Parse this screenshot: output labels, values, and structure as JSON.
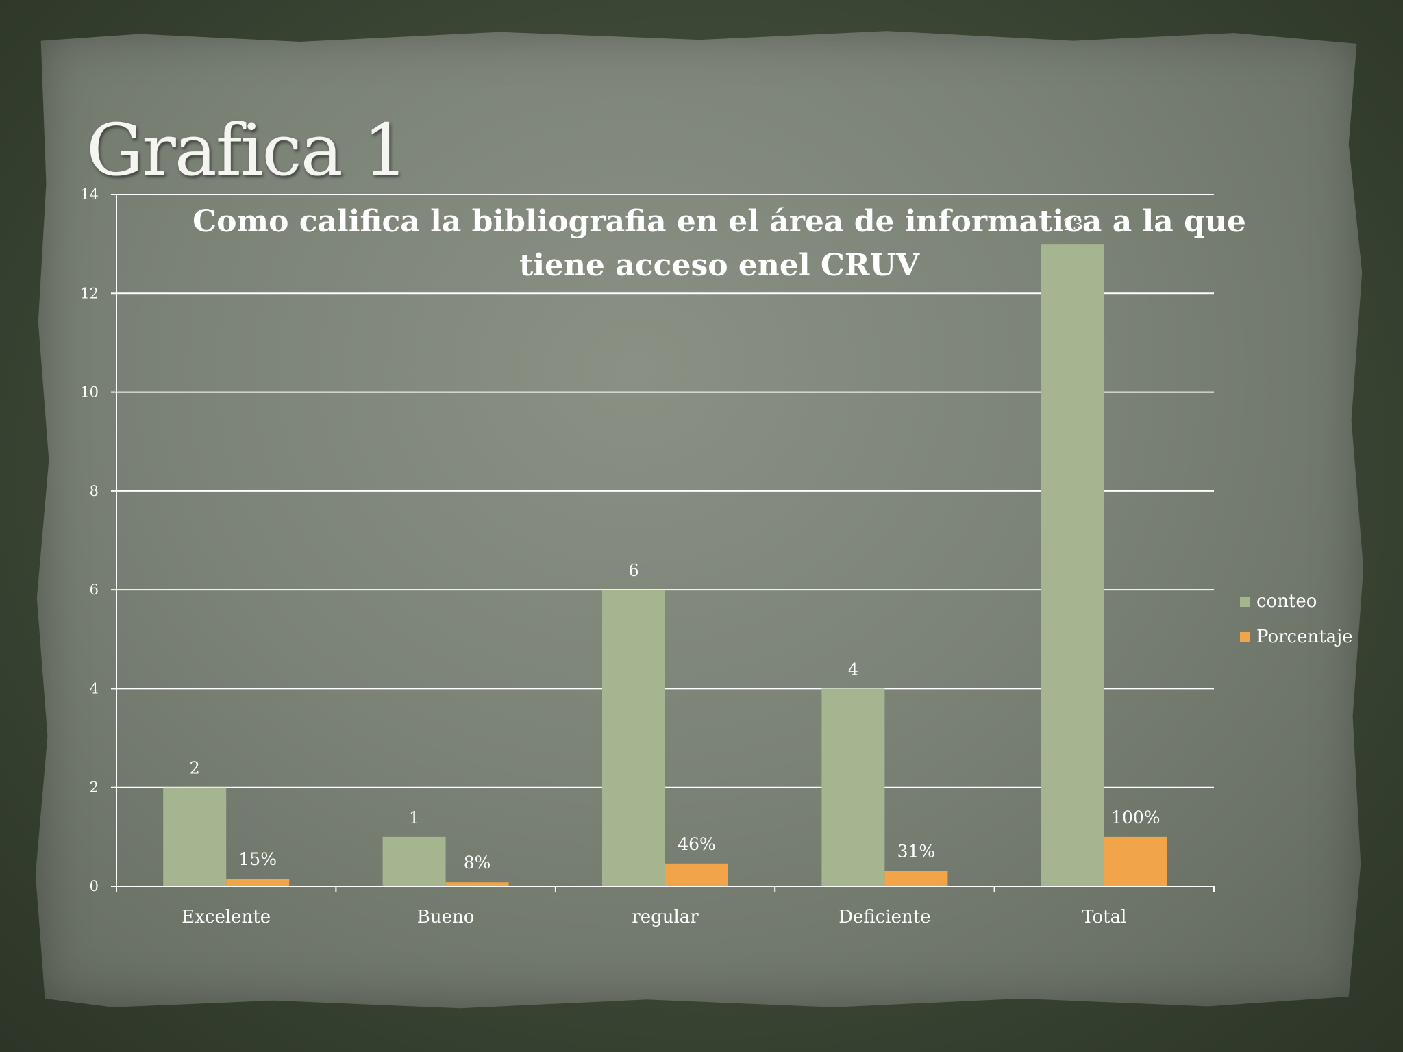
{
  "slide": {
    "title": "Grafica 1"
  },
  "colors": {
    "conteo": "#a4b590",
    "porcentaje": "#f2a448",
    "axis": "#ffffff",
    "text": "#ffffff"
  },
  "chart_data": {
    "type": "bar",
    "title": "Como califica la bibliografia en el área de informatica a la que tiene acceso enel CRUV",
    "categories": [
      "Excelente",
      "Bueno",
      "regular",
      "Deficiente",
      "Total"
    ],
    "series": [
      {
        "name": "conteo",
        "values": [
          2,
          1,
          6,
          4,
          13
        ],
        "labels": [
          "2",
          "1",
          "6",
          "4",
          "13"
        ]
      },
      {
        "name": "Porcentaje",
        "values": [
          0.15,
          0.08,
          0.46,
          0.31,
          1.0
        ],
        "labels": [
          "15%",
          "8%",
          "46%",
          "31%",
          "100%"
        ]
      }
    ],
    "ylim": [
      0,
      14
    ],
    "yticks": [
      0,
      2,
      4,
      6,
      8,
      10,
      12,
      14
    ],
    "grid": true,
    "legend_position": "right"
  }
}
